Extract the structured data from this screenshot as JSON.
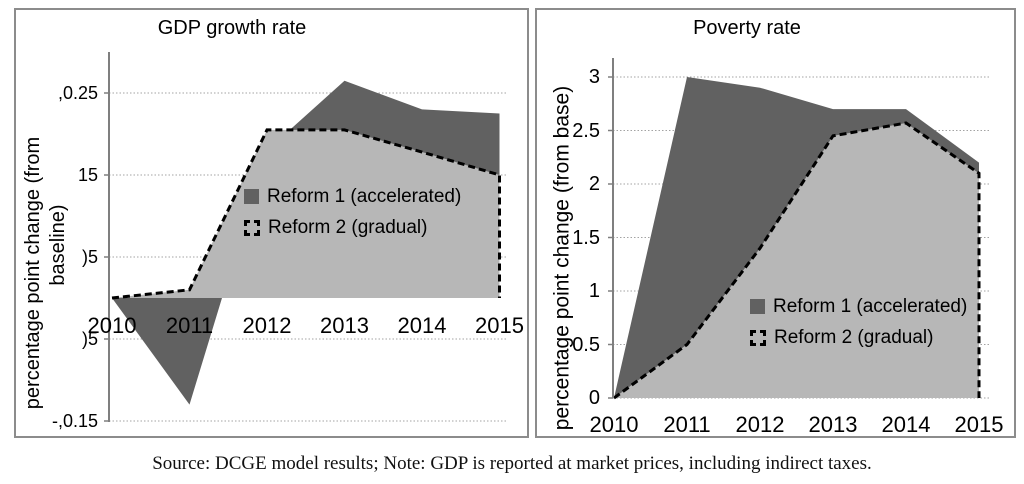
{
  "caption": "Source: DCGE model results; Note: GDP is reported at market prices, including indirect taxes.",
  "colors": {
    "reform1_fill": "#616161",
    "reform2_fill": "#b7b7b7",
    "dashed_line": "#000000",
    "gridline": "#a3a3a3",
    "axis_line": "#7f7f7f",
    "panel_border": "#8c8c8c",
    "text": "#000000"
  },
  "chart_data": [
    {
      "type": "area",
      "title": "GDP growth rate",
      "ylabel": "percentage point change (from baseline)",
      "ylabel_lines": [
        "percentage point change (from",
        "baseline)"
      ],
      "categories": [
        "2010",
        "2011",
        "2012",
        "2013",
        "2014",
        "2015"
      ],
      "series": [
        {
          "name": "Reform 1 (accelerated)",
          "values": [
            0,
            -0.13,
            0.18,
            0.265,
            0.23,
            0.225
          ]
        },
        {
          "name": "Reform 2 (gradual)",
          "values": [
            0,
            0.01,
            0.205,
            0.205,
            0.178,
            0.15
          ]
        }
      ],
      "y_ticks": [
        {
          "value": 0.25,
          "label": ",0.25"
        },
        {
          "value": 0.15,
          "label": "15"
        },
        {
          "value": 0.05,
          "label": ")5"
        },
        {
          "value": -0.05,
          "label": ")5"
        },
        {
          "value": -0.15,
          "label": "-,0.15"
        }
      ],
      "ylim": [
        -0.15,
        0.3
      ],
      "grid": true,
      "legend_position": "center-of-plot"
    },
    {
      "type": "area",
      "title": "Poverty rate",
      "ylabel": "percentage point change (from base)",
      "ylabel_lines": [
        "percentage point change (from base)"
      ],
      "categories": [
        "2010",
        "2011",
        "2012",
        "2013",
        "2014",
        "2015"
      ],
      "series": [
        {
          "name": "Reform 1 (accelerated)",
          "values": [
            0,
            3.0,
            2.9,
            2.7,
            2.7,
            2.2
          ]
        },
        {
          "name": "Reform 2 (gradual)",
          "values": [
            0,
            0.5,
            1.4,
            2.45,
            2.57,
            2.1
          ]
        }
      ],
      "y_ticks": [
        {
          "value": 3,
          "label": "3"
        },
        {
          "value": 2.5,
          "label": "2.5"
        },
        {
          "value": 2,
          "label": "2"
        },
        {
          "value": 1.5,
          "label": "1.5"
        },
        {
          "value": 1,
          "label": "1"
        },
        {
          "value": 0.5,
          "label": "0.5"
        },
        {
          "value": 0,
          "label": "0"
        }
      ],
      "ylim": [
        0,
        3.2
      ],
      "grid": true,
      "legend_position": "center-right-of-plot"
    }
  ]
}
